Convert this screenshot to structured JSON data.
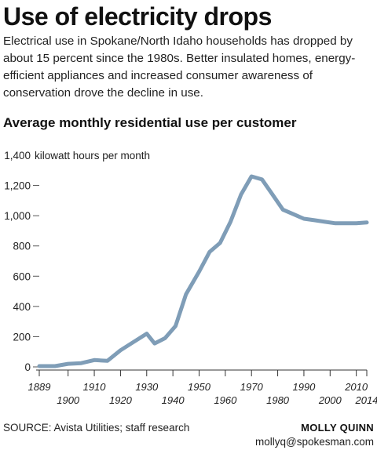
{
  "headline": "Use of electricity drops",
  "dek": "Electrical use in Spokane/North Idaho households has dropped by about 15 percent since the 1980s. Better insulated homes, energy-efficient appliances and increased consumer awareness of conservation drove the decline in use.",
  "subhead": "Average monthly residential use per customer",
  "source": "SOURCE: Avista Utilities; staff research",
  "credit": "MOLLY QUINN",
  "email": "mollyq@spokesman.com",
  "chart_data": {
    "type": "line",
    "title": "Average monthly residential use per customer",
    "ylabel": "kilowatt hours per month",
    "y_unit_label": "kilowatt hours per month",
    "ylim": [
      0,
      1400
    ],
    "yticks": [
      0,
      200,
      400,
      600,
      800,
      1000,
      1200,
      1400
    ],
    "ytick_labels": [
      "0",
      "200",
      "400",
      "600",
      "800",
      "1,000",
      "1,200",
      "1,400"
    ],
    "xlim": [
      1889,
      2014
    ],
    "xticks_upper": [
      1889,
      1910,
      1930,
      1950,
      1970,
      1990,
      2010
    ],
    "xticks_lower": [
      1900,
      1920,
      1940,
      1960,
      1980,
      2000,
      2014
    ],
    "grid": false,
    "line_color": "#7f9db7",
    "series": [
      {
        "x": [
          1889,
          1895,
          1900,
          1905,
          1910,
          1915,
          1920,
          1925,
          1930,
          1933,
          1937,
          1941,
          1945,
          1950,
          1954,
          1958,
          1962,
          1966,
          1970,
          1974,
          1978,
          1982,
          1986,
          1990,
          1994,
          1998,
          2002,
          2006,
          2010,
          2014
        ],
        "y": [
          5,
          5,
          20,
          25,
          45,
          40,
          110,
          165,
          220,
          155,
          190,
          270,
          480,
          630,
          760,
          820,
          960,
          1140,
          1260,
          1240,
          1140,
          1040,
          1010,
          980,
          970,
          960,
          950,
          950,
          950,
          955
        ]
      }
    ]
  }
}
